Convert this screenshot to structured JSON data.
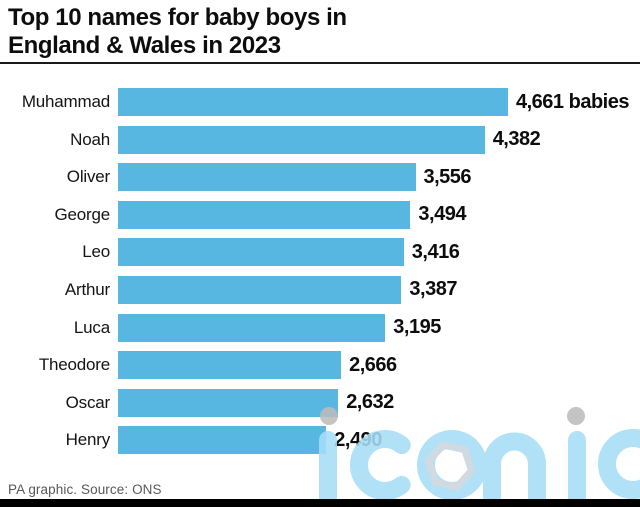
{
  "header": {
    "title": "Top 10 names for baby boys in\nEngland & Wales in 2023"
  },
  "footer": {
    "credit": "PA graphic. Source: ONS"
  },
  "watermark": {
    "text": "iconic"
  },
  "colors": {
    "bar": "#57b7e0",
    "title_text": "#0d0d0d",
    "credit_text": "#58585a",
    "watermark": "#a7def7",
    "watermark_dot": "#bcbcbc",
    "hexagon": "#ccd6dd"
  },
  "chart_data": {
    "type": "bar",
    "orientation": "horizontal",
    "title": "Top 10 names for baby boys in England & Wales in 2023",
    "categories": [
      "Muhammad",
      "Noah",
      "Oliver",
      "George",
      "Leo",
      "Arthur",
      "Luca",
      "Theodore",
      "Oscar",
      "Henry"
    ],
    "values": [
      4661,
      4382,
      3556,
      3494,
      3416,
      3387,
      3195,
      2666,
      2632,
      2490
    ],
    "value_labels": [
      "4,661 babies",
      "4,382",
      "3,556",
      "3,494",
      "3,416",
      "3,387",
      "3,195",
      "2,666",
      "2,632",
      "2,490"
    ],
    "unit": "babies",
    "xlim": [
      0,
      4661
    ],
    "grid": false,
    "legend": false,
    "source": "ONS"
  }
}
